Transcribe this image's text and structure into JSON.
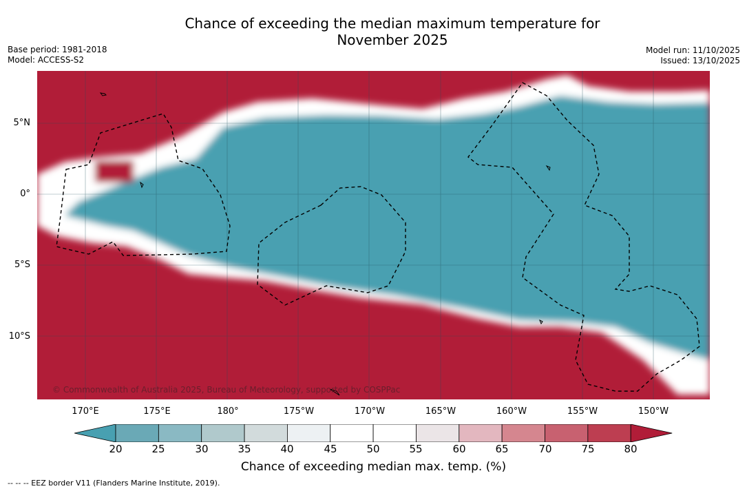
{
  "title_line1": "Chance of exceeding the median maximum temperature for",
  "title_line2": "November 2025",
  "meta_left": {
    "base_period": "Base period: 1981-2018",
    "model": "Model: ACCESS-S2"
  },
  "meta_right": {
    "model_run": "Model run: 11/10/2025",
    "issued": "Issued: 13/10/2025"
  },
  "map": {
    "lat_labels": [
      "5°N",
      "0°",
      "5°S",
      "10°S"
    ],
    "lon_labels": [
      "170°E",
      "175°E",
      "180°",
      "175°W",
      "170°W",
      "165°W",
      "160°W",
      "155°W",
      "150°W"
    ],
    "copyright": "© Commonwealth of Australia 2025, Bureau of Meteorology, supported by COSPPac",
    "colors": {
      "warm": "#b11d38",
      "cool": "#48a0b1",
      "neutral": "#ffffff"
    }
  },
  "colorbar": {
    "ticks": [
      "20",
      "25",
      "30",
      "35",
      "40",
      "45",
      "50",
      "55",
      "60",
      "65",
      "70",
      "75",
      "80"
    ],
    "colors": [
      "#48a0b1",
      "#6aa9b6",
      "#8ab9c3",
      "#b0c9cc",
      "#d2dbdc",
      "#edf1f3",
      "#ffffff",
      "#ffffff",
      "#ebe5e7",
      "#e3b7bf",
      "#d5868f",
      "#c86170",
      "#bd3e51",
      "#b11d38"
    ],
    "label": "Chance of exceeding median max. temp. (%)"
  },
  "legend_note": "--  --  -- EEZ border V11 (Flanders Marine Institute, 2019)."
}
